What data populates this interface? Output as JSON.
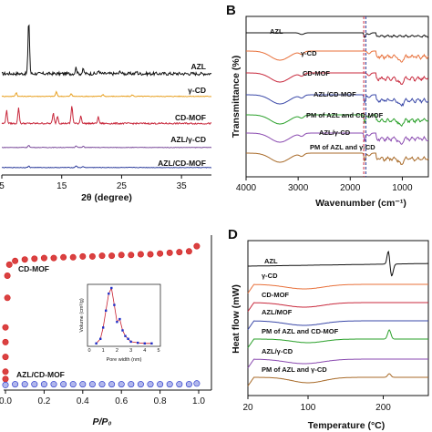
{
  "chart_data": [
    {
      "panel": "A",
      "type": "line",
      "letter_visible": false,
      "xlabel": "2θ (degree)",
      "xlim": [
        5,
        40
      ],
      "xticks": [
        "5",
        "15",
        "25",
        "35"
      ],
      "series": [
        {
          "name": "AZL",
          "color": "#111111",
          "peaks": [
            [
              9.5,
              1.0
            ],
            [
              17.4,
              0.12
            ],
            [
              18.6,
              0.08
            ],
            [
              21.2,
              0.06
            ],
            [
              24.8,
              0.05
            ],
            [
              27.5,
              0.04
            ]
          ]
        },
        {
          "name": "γ-CD",
          "color": "#e8a020",
          "peaks": [
            [
              7.4,
              0.3
            ],
            [
              14.1,
              0.35
            ],
            [
              16.6,
              0.2
            ],
            [
              21.9,
              0.15
            ],
            [
              26.8,
              0.12
            ]
          ]
        },
        {
          "name": "CD-MOF",
          "color": "#c8283c",
          "peaks": [
            [
              5.8,
              0.5
            ],
            [
              7.8,
              0.6
            ],
            [
              13.6,
              0.4
            ],
            [
              14.3,
              0.3
            ],
            [
              16.7,
              0.7
            ],
            [
              18.2,
              0.3
            ],
            [
              21.1,
              0.25
            ]
          ]
        },
        {
          "name": "AZL/γ-CD",
          "color": "#7a4a9a",
          "peaks": [
            [
              9.5,
              0.25
            ],
            [
              17.4,
              0.2
            ],
            [
              18.6,
              0.12
            ]
          ]
        },
        {
          "name": "AZL/CD-MOF",
          "color": "#2a3a9a",
          "peaks": [
            [
              9.5,
              0.15
            ],
            [
              17.4,
              0.2
            ],
            [
              18.6,
              0.1
            ]
          ]
        }
      ]
    },
    {
      "panel": "B",
      "type": "line",
      "letter": "B",
      "xlabel": "Wavenumber (cm⁻¹)",
      "ylabel": "Transmittance (%)",
      "xlim": [
        4000,
        500
      ],
      "xticks": [
        "4000",
        "3000",
        "2000",
        "1000"
      ],
      "series": [
        {
          "name": "AZL",
          "color": "#111111"
        },
        {
          "name": "γ-CD",
          "color": "#e8703a"
        },
        {
          "name": "CD-MOF",
          "color": "#c8283c"
        },
        {
          "name": "AZL/CD-MOF",
          "color": "#3a48a8"
        },
        {
          "name": "PM of AZL and CD-MOF",
          "color": "#2aa02a"
        },
        {
          "name": "AZL/γ-CD",
          "color": "#8a4ab0"
        },
        {
          "name": "PM of AZL and γ-CD",
          "color": "#a86a28"
        }
      ],
      "markers": [
        {
          "x": 1740,
          "color": "#c8283c"
        },
        {
          "x": 1700,
          "color": "#2a3a9a"
        }
      ]
    },
    {
      "panel": "C",
      "type": "scatter",
      "letter_visible": false,
      "xlabel": "P/P₀",
      "xlim": [
        0,
        1.0
      ],
      "xticks": [
        "0.0",
        "0.2",
        "0.4",
        "0.6",
        "0.8",
        "1.0"
      ],
      "series": [
        {
          "name": "CD-MOF",
          "color": "#d42020",
          "x": [
            0.0,
            0.0,
            0.0,
            0.0,
            0.0,
            0.01,
            0.01,
            0.02,
            0.05,
            0.1,
            0.15,
            0.2,
            0.25,
            0.3,
            0.35,
            0.4,
            0.45,
            0.5,
            0.55,
            0.6,
            0.65,
            0.7,
            0.75,
            0.8,
            0.85,
            0.9,
            0.95,
            0.99
          ],
          "y": [
            10,
            20,
            40,
            60,
            80,
            120,
            150,
            165,
            170,
            172,
            173,
            174,
            174,
            175,
            175,
            176,
            176,
            177,
            177,
            178,
            178,
            179,
            179,
            180,
            181,
            182,
            183,
            190
          ]
        },
        {
          "name": "AZL/CD-MOF",
          "color": "#2030c8",
          "x": [
            0.0,
            0.05,
            0.1,
            0.15,
            0.2,
            0.25,
            0.3,
            0.35,
            0.4,
            0.45,
            0.5,
            0.55,
            0.6,
            0.65,
            0.7,
            0.75,
            0.8,
            0.85,
            0.9,
            0.95,
            0.99
          ],
          "y": [
            2,
            3,
            3,
            3,
            3,
            3,
            3,
            3,
            3,
            3,
            3,
            3,
            3,
            3,
            3,
            3,
            3,
            3,
            3,
            3,
            4
          ]
        }
      ],
      "inset": {
        "xlabel": "Pore width (nm)",
        "ylabel": "Volume (cm³/g)",
        "xlim": [
          0,
          5
        ],
        "xticks": [
          "0",
          "1",
          "2",
          "3",
          "4",
          "5"
        ],
        "x": [
          0.5,
          0.8,
          1.0,
          1.2,
          1.4,
          1.6,
          1.8,
          2.0,
          2.2,
          2.4,
          2.6,
          2.8,
          3.0,
          3.5,
          4.0,
          4.5
        ],
        "y": [
          0.02,
          0.1,
          0.3,
          0.6,
          0.9,
          1.0,
          0.7,
          0.4,
          0.45,
          0.25,
          0.15,
          0.1,
          0.05,
          0.03,
          0.02,
          0.02
        ]
      }
    },
    {
      "panel": "D",
      "type": "line",
      "letter": "D",
      "xlabel": "Temperature (°C)",
      "ylabel": "Heat flow (mW)",
      "xlim": [
        20,
        260
      ],
      "xticks": [
        "20",
        "100",
        "200"
      ],
      "series": [
        {
          "name": "AZL",
          "color": "#111111"
        },
        {
          "name": "γ-CD",
          "color": "#e8703a"
        },
        {
          "name": "CD-MOF",
          "color": "#c8283c"
        },
        {
          "name": "AZL/MOF",
          "color": "#3a48a8"
        },
        {
          "name": "PM of AZL and CD-MOF",
          "color": "#2aa02a"
        },
        {
          "name": "AZL/γ-CD",
          "color": "#8a4ab0"
        },
        {
          "name": "PM of AZL and γ-CD",
          "color": "#a86a28"
        }
      ]
    }
  ]
}
